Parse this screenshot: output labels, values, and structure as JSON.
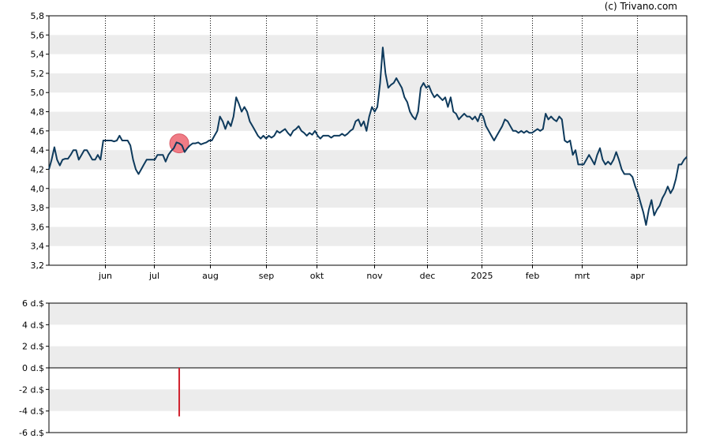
{
  "copyright": "(c) Trivano.com",
  "colors": {
    "band": "#ececec",
    "price_line": "#0e3a5c",
    "dividend_marker": "#f07c86",
    "dividend_bar": "#d0202c",
    "vgrid": "#000000"
  },
  "chart_data": [
    {
      "type": "line",
      "title": "",
      "ylim": [
        3.2,
        5.8
      ],
      "y_ticks": [
        "3,2",
        "3,4",
        "3,6",
        "3,8",
        "4,0",
        "4,2",
        "4,4",
        "4,6",
        "4,8",
        "5,0",
        "5,2",
        "5,4",
        "5,6",
        "5,8"
      ],
      "x_ticks": [
        "jun",
        "jul",
        "aug",
        "sep",
        "okt",
        "nov",
        "dec",
        "2025",
        "feb",
        "mrt",
        "apr"
      ],
      "grid": "alternating horizontal bands, dotted vertical lines at month ticks",
      "series": [
        {
          "values": [
            4.2,
            4.3,
            4.43,
            4.3,
            4.24,
            4.3,
            4.31,
            4.31,
            4.35,
            4.4,
            4.4,
            4.3,
            4.35,
            4.4,
            4.4,
            4.35,
            4.3,
            4.3,
            4.35,
            4.3,
            4.5,
            4.5,
            4.5,
            4.5,
            4.49,
            4.5,
            4.55,
            4.5,
            4.5,
            4.5,
            4.45,
            4.3,
            4.2,
            4.15,
            4.2,
            4.25,
            4.3,
            4.3,
            4.3,
            4.3,
            4.35,
            4.35,
            4.35,
            4.28,
            4.35,
            4.39,
            4.42,
            4.48,
            4.47,
            4.45,
            4.38,
            4.42,
            4.45,
            4.47,
            4.47,
            4.48,
            4.46,
            4.47,
            4.48,
            4.5,
            4.5,
            4.55,
            4.6,
            4.75,
            4.7,
            4.62,
            4.7,
            4.65,
            4.75,
            4.95,
            4.88,
            4.8,
            4.85,
            4.8,
            4.7,
            4.65,
            4.6,
            4.55,
            4.52,
            4.55,
            4.52,
            4.55,
            4.53,
            4.55,
            4.6,
            4.58,
            4.6,
            4.62,
            4.58,
            4.55,
            4.6,
            4.62,
            4.65,
            4.6,
            4.58,
            4.55,
            4.58,
            4.56,
            4.6,
            4.55,
            4.52,
            4.55,
            4.55,
            4.55,
            4.53,
            4.55,
            4.55,
            4.55,
            4.57,
            4.55,
            4.57,
            4.6,
            4.62,
            4.7,
            4.72,
            4.65,
            4.7,
            4.6,
            4.75,
            4.85,
            4.8,
            4.85,
            5.1,
            5.47,
            5.2,
            5.05,
            5.08,
            5.1,
            5.15,
            5.1,
            5.05,
            4.95,
            4.9,
            4.8,
            4.75,
            4.72,
            4.8,
            5.05,
            5.1,
            5.05,
            5.07,
            5.0,
            4.95,
            4.98,
            4.95,
            4.92,
            4.95,
            4.85,
            4.95,
            4.8,
            4.78,
            4.72,
            4.75,
            4.78,
            4.75,
            4.75,
            4.72,
            4.75,
            4.7,
            4.78,
            4.75,
            4.65,
            4.6,
            4.55,
            4.5,
            4.55,
            4.6,
            4.65,
            4.72,
            4.7,
            4.65,
            4.6,
            4.6,
            4.58,
            4.6,
            4.58,
            4.6,
            4.58,
            4.58,
            4.6,
            4.62,
            4.6,
            4.62,
            4.78,
            4.72,
            4.75,
            4.72,
            4.7,
            4.75,
            4.72,
            4.5,
            4.48,
            4.5,
            4.35,
            4.4,
            4.25,
            4.25,
            4.25,
            4.3,
            4.35,
            4.3,
            4.25,
            4.35,
            4.42,
            4.3,
            4.25,
            4.28,
            4.25,
            4.3,
            4.38,
            4.3,
            4.2,
            4.15,
            4.15,
            4.15,
            4.12,
            4.02,
            3.95,
            3.85,
            3.75,
            3.62,
            3.78,
            3.88,
            3.72,
            3.78,
            3.82,
            3.9,
            3.95,
            4.02,
            3.95,
            4.0,
            4.1,
            4.25,
            4.25,
            4.3,
            4.33
          ]
        }
      ],
      "markers": [
        {
          "label": "dividend",
          "index": 48
        }
      ]
    },
    {
      "type": "bar",
      "title": "",
      "ylim": [
        -6,
        6
      ],
      "y_ticks": [
        "6 d.$",
        "4 d.$",
        "2 d.$",
        "0 d.$",
        "-2 d.$",
        "-4 d.$",
        "-6 d.$"
      ],
      "series": [
        {
          "bars": [
            {
              "index": 48,
              "value": -4.5
            }
          ]
        }
      ]
    }
  ]
}
